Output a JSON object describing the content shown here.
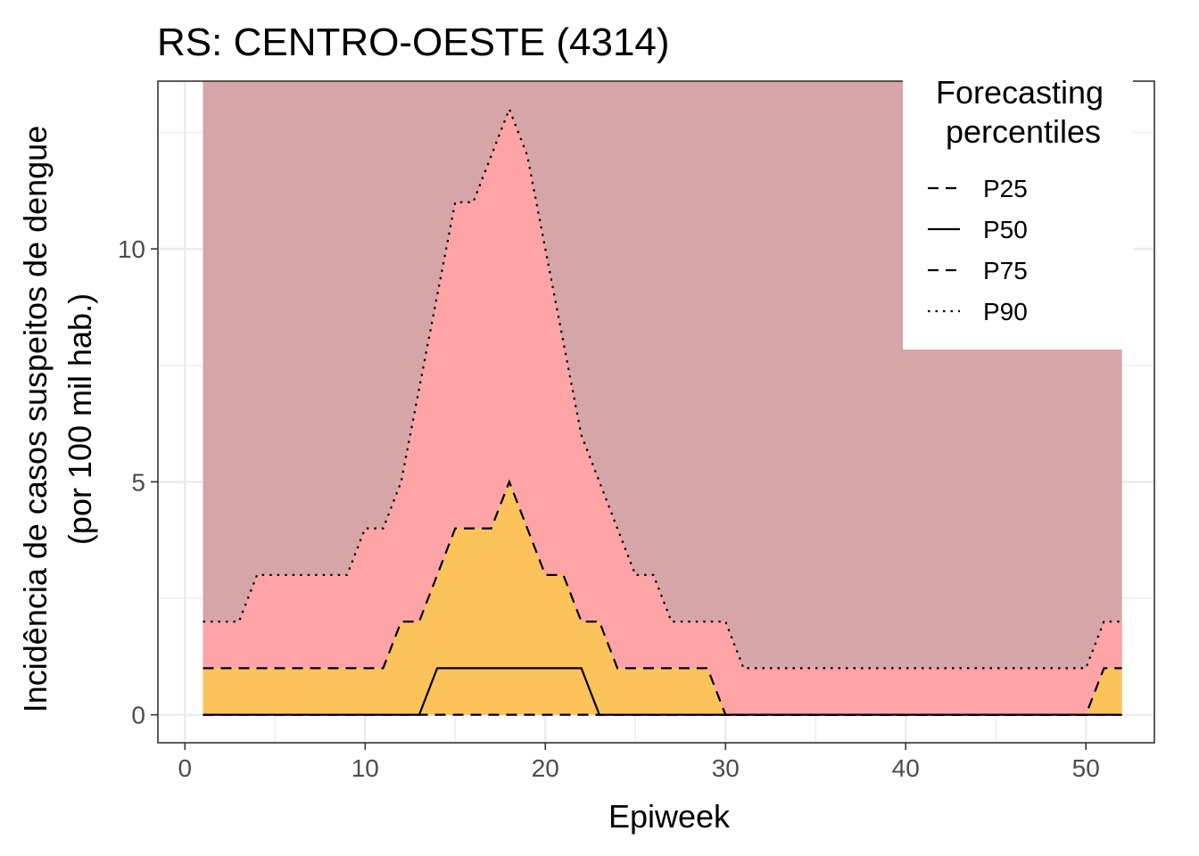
{
  "chart_data": {
    "type": "area",
    "title": "RS: CENTRO-OESTE (4314)",
    "xlabel": "Epiweek",
    "ylabel_line1": "Incidência de casos suspeitos de dengue",
    "ylabel_line2": "(por 100 mil hab.)",
    "xlim": [
      -1.5,
      53.8
    ],
    "ylim": [
      -0.6,
      13.6
    ],
    "x_ticks": [
      0,
      10,
      20,
      30,
      40,
      50
    ],
    "y_ticks": [
      0,
      5,
      10
    ],
    "grid": true,
    "legend": {
      "title_line1": "Forecasting",
      "title_line2": "percentiles",
      "position": "top-right",
      "entries": [
        {
          "name": "P25",
          "linetype": "dashed"
        },
        {
          "name": "P50",
          "linetype": "solid"
        },
        {
          "name": "P75",
          "linetype": "dashed"
        },
        {
          "name": "P90",
          "linetype": "dotted"
        }
      ]
    },
    "colors": {
      "band_upper": "#d5a5a8",
      "band_p75_p90": "#fea4a7",
      "band_p25_p75": "#fdc35b",
      "line": "#000000"
    },
    "x": [
      1,
      2,
      3,
      4,
      5,
      6,
      7,
      8,
      9,
      10,
      11,
      12,
      13,
      14,
      15,
      16,
      17,
      18,
      19,
      20,
      21,
      22,
      23,
      24,
      25,
      26,
      27,
      28,
      29,
      30,
      31,
      32,
      33,
      34,
      35,
      36,
      37,
      38,
      39,
      40,
      41,
      42,
      43,
      44,
      45,
      46,
      47,
      48,
      49,
      50,
      51,
      52
    ],
    "series": [
      {
        "name": "P25",
        "values": [
          0,
          0,
          0,
          0,
          0,
          0,
          0,
          0,
          0,
          0,
          0,
          0,
          0,
          0,
          0,
          0,
          0,
          0,
          0,
          0,
          0,
          0,
          0,
          0,
          0,
          0,
          0,
          0,
          0,
          0,
          0,
          0,
          0,
          0,
          0,
          0,
          0,
          0,
          0,
          0,
          0,
          0,
          0,
          0,
          0,
          0,
          0,
          0,
          0,
          0,
          0,
          0
        ]
      },
      {
        "name": "P50",
        "values": [
          0,
          0,
          0,
          0,
          0,
          0,
          0,
          0,
          0,
          0,
          0,
          0,
          0,
          1,
          1,
          1,
          1,
          1,
          1,
          1,
          1,
          1,
          0,
          0,
          0,
          0,
          0,
          0,
          0,
          0,
          0,
          0,
          0,
          0,
          0,
          0,
          0,
          0,
          0,
          0,
          0,
          0,
          0,
          0,
          0,
          0,
          0,
          0,
          0,
          0,
          0,
          0
        ]
      },
      {
        "name": "P75",
        "values": [
          1,
          1,
          1,
          1,
          1,
          1,
          1,
          1,
          1,
          1,
          1,
          2,
          2,
          3,
          4,
          4,
          4,
          5,
          4,
          3,
          3,
          2,
          2,
          1,
          1,
          1,
          1,
          1,
          1,
          0,
          0,
          0,
          0,
          0,
          0,
          0,
          0,
          0,
          0,
          0,
          0,
          0,
          0,
          0,
          0,
          0,
          0,
          0,
          0,
          0,
          1,
          1
        ]
      },
      {
        "name": "P90",
        "values": [
          2,
          2,
          2,
          3,
          3,
          3,
          3,
          3,
          3,
          4,
          4,
          5,
          7,
          9,
          11,
          11,
          12,
          13,
          12,
          10,
          8,
          6,
          5,
          4,
          3,
          3,
          2,
          2,
          2,
          2,
          1,
          1,
          1,
          1,
          1,
          1,
          1,
          1,
          1,
          1,
          1,
          1,
          1,
          1,
          1,
          1,
          1,
          1,
          1,
          1,
          2,
          2
        ]
      }
    ]
  }
}
